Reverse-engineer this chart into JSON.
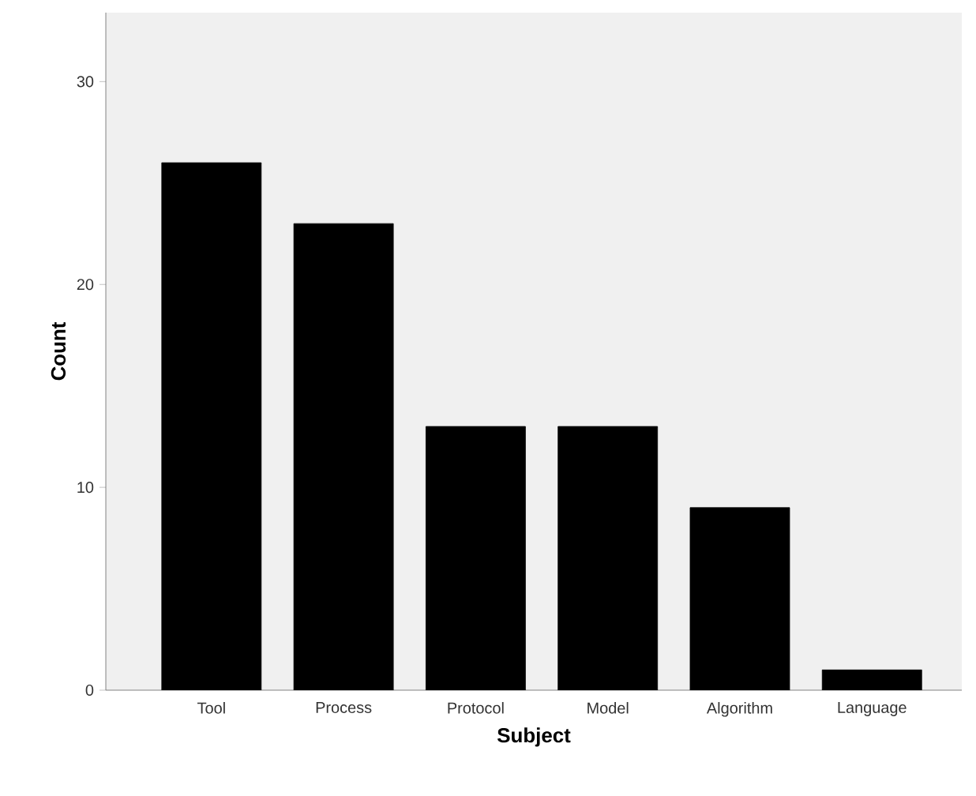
{
  "chart_data": {
    "type": "bar",
    "xlabel": "Subject",
    "ylabel": "Count",
    "categories": [
      "Tool",
      "Process",
      "Protocol",
      "Model",
      "Algorithm",
      "Language"
    ],
    "values": [
      26,
      23,
      13,
      13,
      9,
      1
    ],
    "color": "#000000",
    "ylim": [
      0,
      33.4
    ],
    "yticks": [
      0,
      10,
      20,
      30
    ]
  }
}
